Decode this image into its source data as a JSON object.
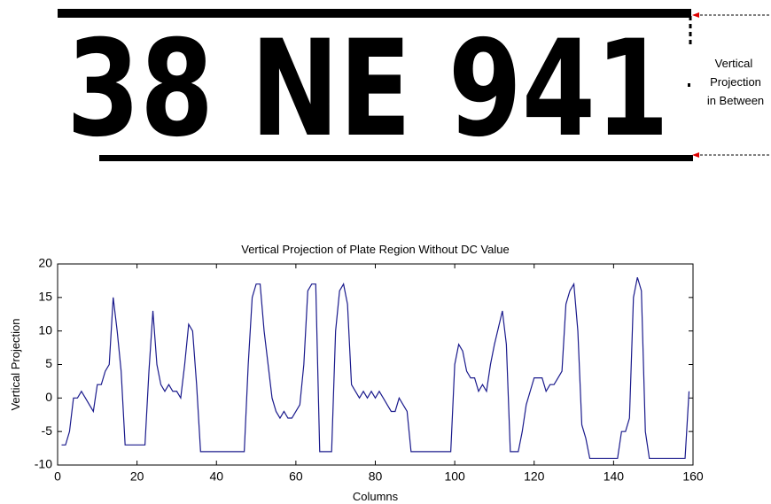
{
  "plate": {
    "text": "38 NE 941",
    "annotation": [
      "Vertical",
      "Projection",
      "in Between"
    ]
  },
  "chart_data": {
    "type": "line",
    "title": "Vertical Projection of Plate Region Without DC Value",
    "x_label": "Columns",
    "y_label": "Vertical Projection",
    "xlim": [
      0,
      160
    ],
    "xticks": [
      0,
      20,
      40,
      60,
      80,
      100,
      120,
      140,
      160
    ],
    "ylim": [
      -10,
      20
    ],
    "yticks": [
      -10,
      -5,
      0,
      5,
      10,
      15,
      20
    ],
    "grid": false,
    "series": [
      {
        "color": "#1a1a8c",
        "x": [
          1,
          2,
          3,
          4,
          5,
          6,
          7,
          8,
          9,
          10,
          11,
          12,
          13,
          14,
          15,
          16,
          17,
          22,
          23,
          24,
          25,
          26,
          27,
          28,
          29,
          30,
          31,
          32,
          33,
          34,
          35,
          36,
          47,
          48,
          49,
          50,
          51,
          52,
          53,
          54,
          55,
          56,
          57,
          58,
          59,
          60,
          61,
          62,
          63,
          64,
          65,
          66,
          69,
          70,
          71,
          72,
          73,
          74,
          75,
          76,
          77,
          78,
          79,
          80,
          81,
          82,
          83,
          84,
          85,
          86,
          87,
          88,
          89,
          99,
          100,
          101,
          102,
          103,
          104,
          105,
          106,
          107,
          108,
          109,
          110,
          112,
          113,
          114,
          116,
          117,
          118,
          119,
          120,
          122,
          123,
          124,
          125,
          126,
          127,
          128,
          129,
          130,
          131,
          132,
          133,
          134,
          141,
          142,
          143,
          144,
          145,
          146,
          147,
          148,
          149,
          158,
          159
        ],
        "values": [
          -7,
          -7,
          -5,
          0,
          0,
          1,
          0,
          -1,
          -2,
          2,
          2,
          4,
          5,
          15,
          10,
          4,
          -7,
          -7,
          4,
          13,
          5,
          2,
          1,
          2,
          1,
          1,
          0,
          5,
          11,
          10,
          2,
          -8,
          -8,
          5,
          15,
          17,
          17,
          10,
          5,
          0,
          -2,
          -3,
          -2,
          -3,
          -3,
          -2,
          -1,
          5,
          16,
          17,
          17,
          -8,
          -8,
          10,
          16,
          17,
          14,
          2,
          1,
          0,
          1,
          0,
          1,
          0,
          1,
          0,
          -1,
          -2,
          -2,
          0,
          -1,
          -2,
          -8,
          -8,
          5,
          8,
          7,
          4,
          3,
          3,
          1,
          2,
          1,
          5,
          8,
          13,
          8,
          -8,
          -8,
          -5,
          -1,
          1,
          3,
          3,
          1,
          2,
          2,
          3,
          4,
          14,
          16,
          17,
          10,
          -4,
          -6,
          -9,
          -9,
          -5,
          -5,
          -3,
          15,
          18,
          16,
          -5,
          -9,
          -9,
          1
        ]
      }
    ]
  }
}
